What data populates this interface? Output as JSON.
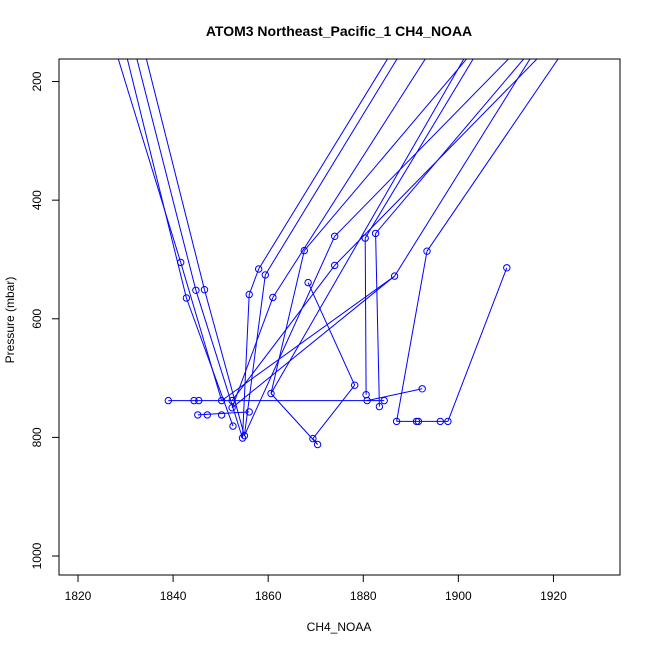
{
  "chart_data": {
    "type": "scatter",
    "title": "ATOM3 Northeast_Pacific_1 CH4_NOAA",
    "xlabel": "CH4_NOAA",
    "ylabel": "Pressure (mbar)",
    "xlim": [
      1816,
      1934
    ],
    "ylim": [
      1032,
      162
    ],
    "y_reversed": true,
    "x_ticks": [
      1820,
      1840,
      1860,
      1880,
      1900,
      1920
    ],
    "y_ticks": [
      200,
      400,
      600,
      800,
      1000
    ],
    "grid": false,
    "legend": "none",
    "series_color": "#0000ff",
    "points": [
      [
        1841.6,
        505
      ],
      [
        1842.8,
        565
      ],
      [
        1844.8,
        552
      ],
      [
        1846.6,
        551
      ],
      [
        1839.0,
        738
      ],
      [
        1844.4,
        738
      ],
      [
        1845.4,
        738
      ],
      [
        1850.2,
        738
      ],
      [
        1852.4,
        738
      ],
      [
        1845.2,
        762
      ],
      [
        1847.2,
        762
      ],
      [
        1850.2,
        762
      ],
      [
        1852.4,
        750
      ],
      [
        1852.6,
        781
      ],
      [
        1854.6,
        801
      ],
      [
        1855.0,
        797
      ],
      [
        1856.0,
        757
      ],
      [
        1856.0,
        559
      ],
      [
        1858.0,
        516
      ],
      [
        1859.4,
        526
      ],
      [
        1860.6,
        726
      ],
      [
        1861.0,
        564
      ],
      [
        1867.6,
        485
      ],
      [
        1868.4,
        539
      ],
      [
        1869.4,
        802
      ],
      [
        1870.4,
        812
      ],
      [
        1874.0,
        461
      ],
      [
        1874.0,
        510
      ],
      [
        1878.2,
        712
      ],
      [
        1880.4,
        464
      ],
      [
        1880.6,
        728
      ],
      [
        1880.8,
        738
      ],
      [
        1882.6,
        456
      ],
      [
        1883.4,
        748
      ],
      [
        1884.4,
        738
      ],
      [
        1886.6,
        528
      ],
      [
        1887.0,
        773
      ],
      [
        1891.2,
        773
      ],
      [
        1891.6,
        773
      ],
      [
        1892.4,
        718
      ],
      [
        1893.4,
        486
      ],
      [
        1896.2,
        773
      ],
      [
        1897.8,
        773
      ],
      [
        1910.2,
        514
      ]
    ],
    "connections": [
      [
        [
          1828,
          150
        ],
        [
          1841.6,
          505
        ]
      ],
      [
        [
          1841.6,
          505
        ],
        [
          1850.2,
          738
        ]
      ],
      [
        [
          1830,
          150
        ],
        [
          1842.8,
          565
        ]
      ],
      [
        [
          1842.8,
          565
        ],
        [
          1852.6,
          781
        ]
      ],
      [
        [
          1832,
          150
        ],
        [
          1844.8,
          552
        ]
      ],
      [
        [
          1844.8,
          552
        ],
        [
          1854.6,
          801
        ]
      ],
      [
        [
          1834,
          150
        ],
        [
          1846.6,
          551
        ]
      ],
      [
        [
          1846.6,
          551
        ],
        [
          1855.0,
          797
        ]
      ],
      [
        [
          1839.0,
          738
        ],
        [
          1884.4,
          738
        ]
      ],
      [
        [
          1845.2,
          762
        ],
        [
          1856.0,
          757
        ]
      ],
      [
        [
          1854.6,
          801
        ],
        [
          1856.0,
          559
        ]
      ],
      [
        [
          1856.0,
          559
        ],
        [
          1858.0,
          516
        ]
      ],
      [
        [
          1858.0,
          516
        ],
        [
          1886,
          150
        ]
      ],
      [
        [
          1855.0,
          797
        ],
        [
          1859.4,
          526
        ]
      ],
      [
        [
          1859.4,
          526
        ],
        [
          1888,
          150
        ]
      ],
      [
        [
          1852.4,
          750
        ],
        [
          1861.0,
          564
        ]
      ],
      [
        [
          1861.0,
          564
        ],
        [
          1894,
          150
        ]
      ],
      [
        [
          1860.6,
          726
        ],
        [
          1867.6,
          485
        ]
      ],
      [
        [
          1867.6,
          485
        ],
        [
          1903,
          150
        ]
      ],
      [
        [
          1868.4,
          539
        ],
        [
          1878.2,
          712
        ]
      ],
      [
        [
          1878.2,
          712
        ],
        [
          1869.4,
          802
        ]
      ],
      [
        [
          1860.6,
          726
        ],
        [
          1902,
          150
        ]
      ],
      [
        [
          1855.0,
          797
        ],
        [
          1874.0,
          461
        ]
      ],
      [
        [
          1874.0,
          461
        ],
        [
          1912,
          150
        ]
      ],
      [
        [
          1852.4,
          738
        ],
        [
          1874.0,
          510
        ]
      ],
      [
        [
          1874.0,
          510
        ],
        [
          1918,
          150
        ]
      ],
      [
        [
          1880.4,
          464
        ],
        [
          1880.6,
          728
        ]
      ],
      [
        [
          1880.4,
          464
        ],
        [
          1904,
          150
        ]
      ],
      [
        [
          1882.6,
          456
        ],
        [
          1883.4,
          748
        ]
      ],
      [
        [
          1882.6,
          456
        ],
        [
          1915,
          150
        ]
      ],
      [
        [
          1852.4,
          750
        ],
        [
          1886.6,
          528
        ]
      ],
      [
        [
          1886.6,
          528
        ],
        [
          1916,
          150
        ]
      ],
      [
        [
          1887.0,
          773
        ],
        [
          1893.4,
          486
        ]
      ],
      [
        [
          1893.4,
          486
        ],
        [
          1922,
          150
        ]
      ],
      [
        [
          1880.8,
          738
        ],
        [
          1892.4,
          718
        ]
      ],
      [
        [
          1887.0,
          773
        ],
        [
          1897.8,
          773
        ]
      ],
      [
        [
          1897.8,
          773
        ],
        [
          1910.2,
          514
        ]
      ],
      [
        [
          1850.2,
          738
        ],
        [
          1886.6,
          528
        ]
      ],
      [
        [
          1869.4,
          802
        ],
        [
          1870.4,
          812
        ]
      ],
      [
        [
          1870.4,
          812
        ],
        [
          1860.6,
          726
        ]
      ]
    ]
  }
}
